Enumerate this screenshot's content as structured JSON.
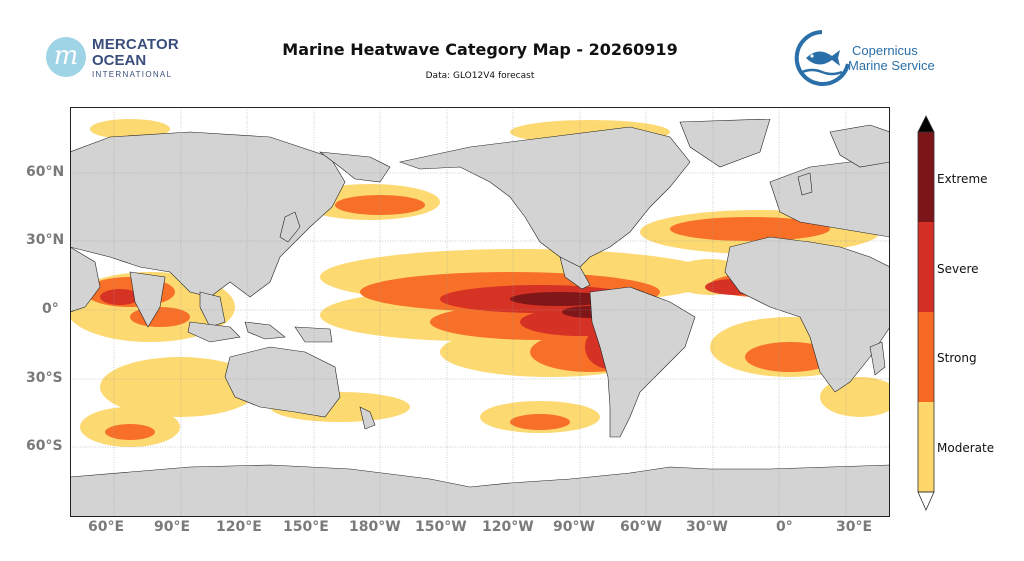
{
  "header": {
    "title": "Marine Heatwave Category Map - 20260919",
    "subtitle": "Data: GLO12V4 forecast"
  },
  "logos": {
    "left": {
      "mark": "m",
      "line1": "MERCATOR",
      "line2": "OCEAN",
      "line3": "INTERNATIONAL"
    },
    "right": {
      "line1": "Copernicus",
      "line2": "Marine Service",
      "icon": "fish-icon"
    }
  },
  "map": {
    "projection": "plate-carree",
    "lon_range": [
      40,
      50
    ],
    "lon_range_note_wrapped": "40E to 410E (50E)",
    "lat_range": [
      -90,
      90
    ],
    "ocean_color": "#ffffff",
    "land_color": "#d3d3d3",
    "gridlines": true,
    "lon_ticks": [
      "60°E",
      "90°E",
      "120°E",
      "150°E",
      "180°W",
      "150°W",
      "120°W",
      "90°W",
      "60°W",
      "30°W",
      "0°",
      "30°E"
    ],
    "lat_ticks": [
      "60°N",
      "30°N",
      "0°",
      "30°S",
      "60°S"
    ]
  },
  "colorbar": {
    "orientation": "vertical",
    "extend": "both",
    "categories": [
      {
        "label": "Moderate",
        "color": "#fdd76a"
      },
      {
        "label": "Strong",
        "color": "#f86a24"
      },
      {
        "label": "Severe",
        "color": "#d42f25"
      },
      {
        "label": "Extreme",
        "color": "#7b1517"
      }
    ],
    "over_color": "#000000",
    "under_color": "#ffffff"
  }
}
